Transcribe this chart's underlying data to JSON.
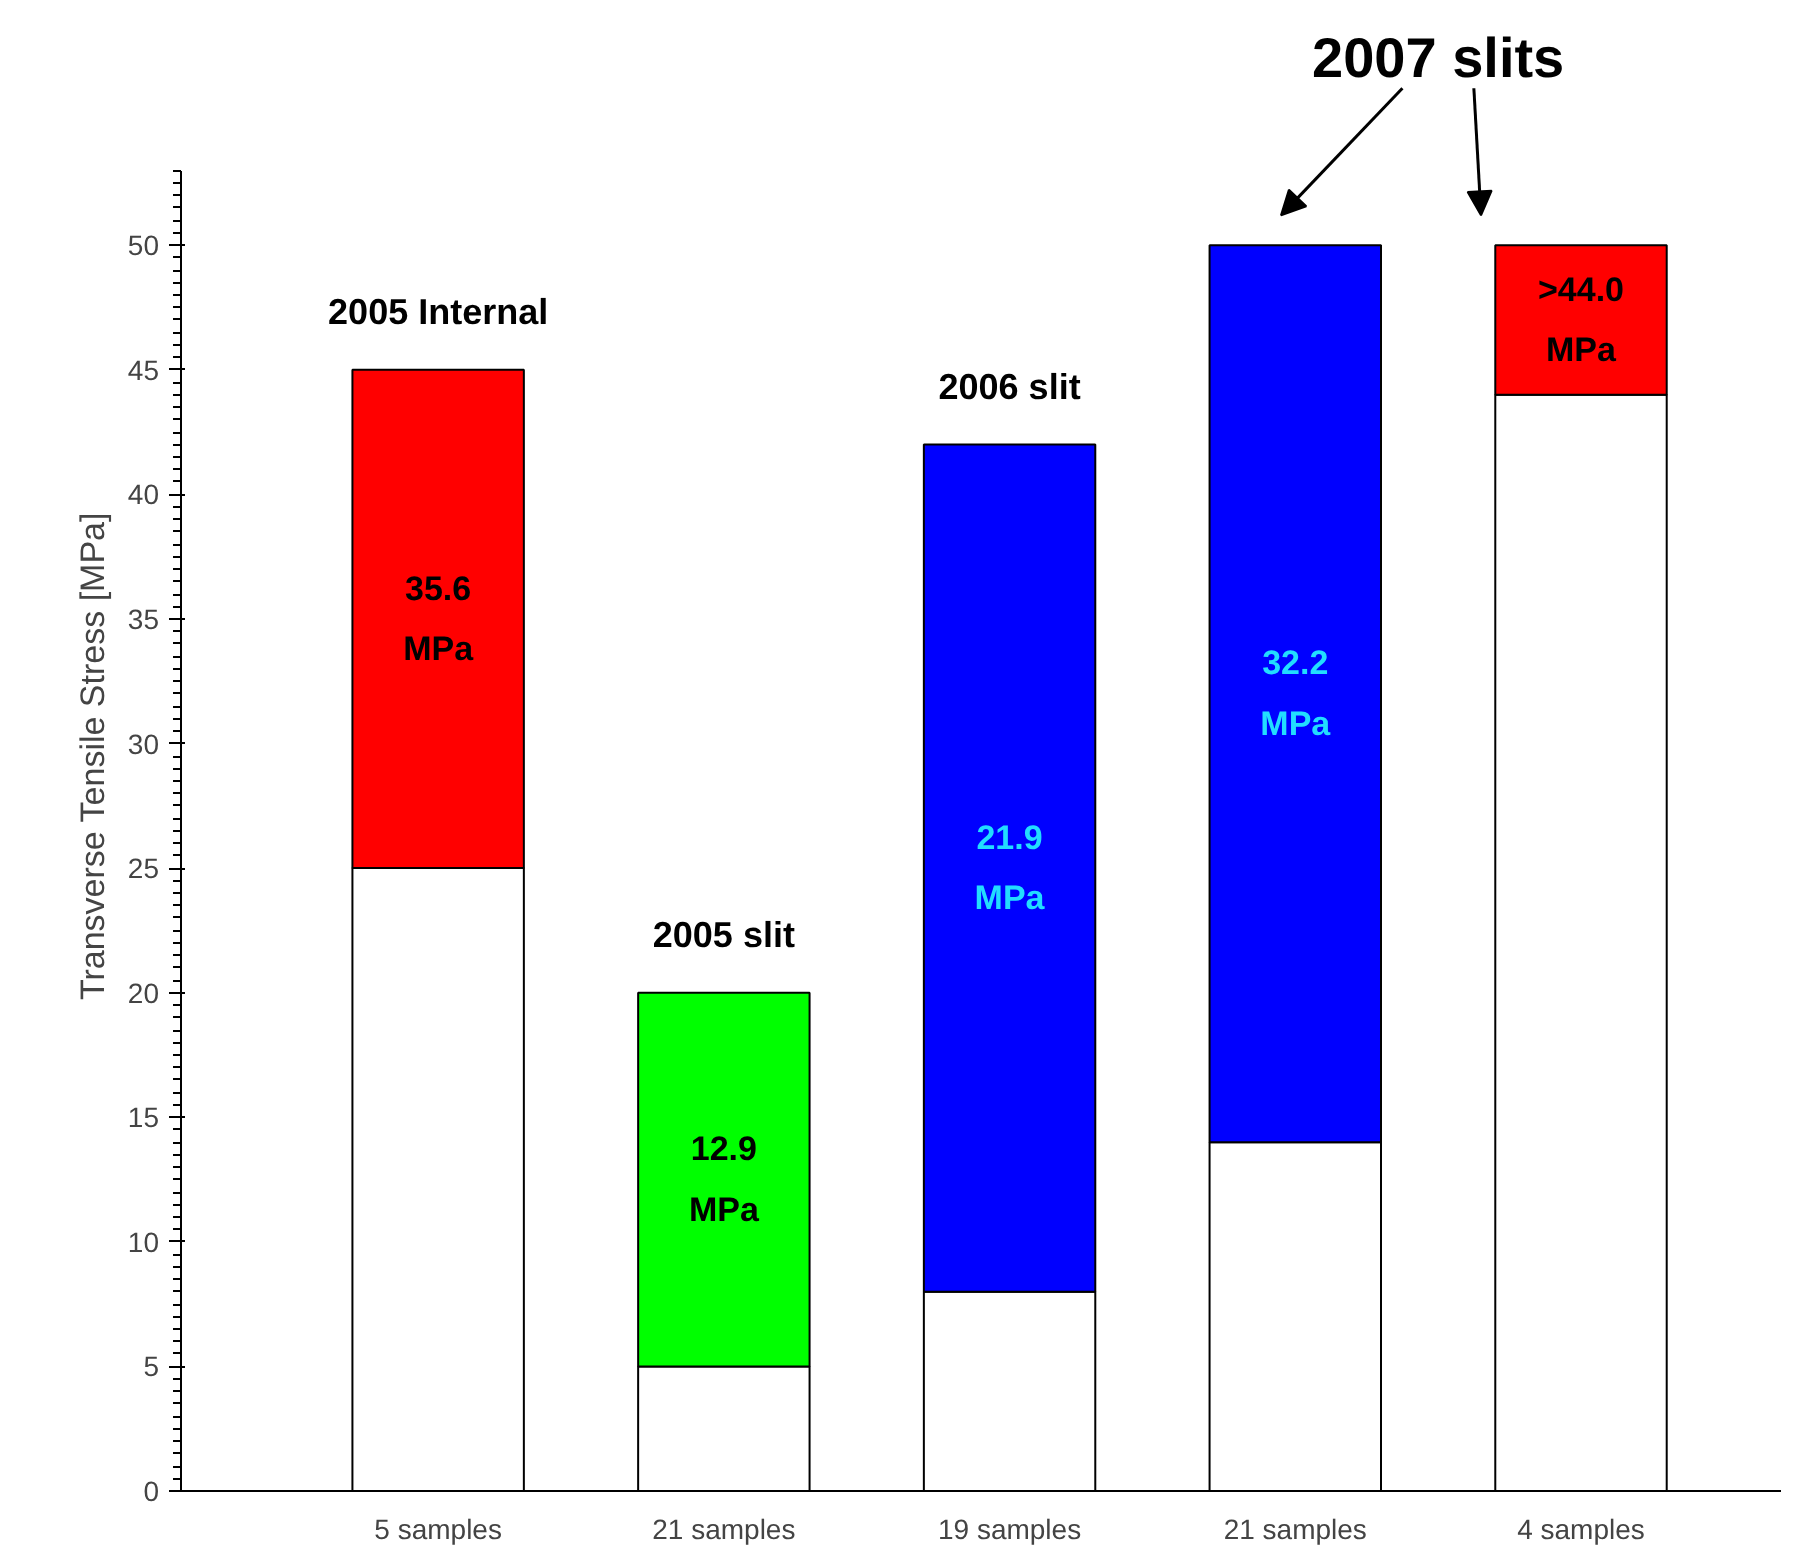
{
  "chart_data": {
    "type": "bar",
    "stacked": true,
    "categories": [
      "5 samples",
      "21 samples",
      "19 samples",
      "21 samples",
      "4 samples"
    ],
    "ylabel": "Transverse Tensile Stress [MPa]",
    "ylim": [
      0,
      53
    ],
    "yticks": [
      0,
      5,
      10,
      15,
      20,
      25,
      30,
      35,
      40,
      45,
      50
    ],
    "grid": false,
    "series": [
      {
        "color": "#ffffff",
        "values": [
          25,
          5,
          8,
          14,
          44
        ]
      },
      {
        "colors": [
          "#ff0000",
          "#00ff00",
          "#0000ff",
          "#0000ff",
          "#ff0000"
        ],
        "values": [
          20,
          15,
          34,
          36,
          6
        ]
      }
    ],
    "annotations": [
      {
        "text": "2005 Internal",
        "x": "5 samples",
        "y": 45
      },
      {
        "text": "2005 slit",
        "x": "21 samples",
        "y": 20
      },
      {
        "text": "2006 slit",
        "x": "19 samples",
        "y": 42
      },
      "35.6\nMPa",
      "12.9\nMPa",
      "21.9\nMPa",
      "32.2\nMPa",
      ">44.0\nMPa",
      "2007 slits"
    ]
  }
}
